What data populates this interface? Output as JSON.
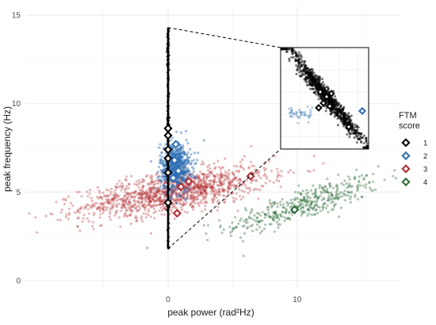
{
  "chart_data": {
    "type": "scatter",
    "title": "",
    "xlabel": "peak power (rad²Hz)",
    "ylabel": "peak frequency (Hz)",
    "xlim": [
      -11,
      18
    ],
    "ylim": [
      -0.5,
      15.5
    ],
    "x_ticks": [
      0,
      10
    ],
    "x_tick_labels": [
      "0",
      "10"
    ],
    "y_ticks": [
      0,
      5,
      10,
      15
    ],
    "y_tick_labels": [
      "0",
      "5",
      "10",
      "15"
    ],
    "grid": true,
    "legend": {
      "title": "FTM\nscore",
      "position": "right",
      "entries": [
        "1",
        "2",
        "3",
        "4"
      ]
    },
    "colors": {
      "1": "#000000",
      "2": "#2f6fb3",
      "3": "#b2272d",
      "4": "#2e6b36"
    },
    "clusters": [
      {
        "name": "1",
        "shape": "vertical band at x=0",
        "x_center": 0,
        "x_spread": 0.05,
        "y_min": 1.8,
        "y_max": 14.3
      },
      {
        "name": "2",
        "x_center": 0.6,
        "x_spread": 0.6,
        "y_center": 6.4,
        "y_spread": 0.7
      },
      {
        "name": "3",
        "x_center": 0.5,
        "x_spread": 3.6,
        "y_center": 5.0,
        "y_spread": 0.55,
        "slope": 0.12
      },
      {
        "name": "4",
        "x_center": 10.5,
        "x_spread": 3.0,
        "y_center": 4.3,
        "y_spread": 0.45,
        "slope": 0.22
      }
    ],
    "highlight_points": [
      {
        "series": "1",
        "x": 0,
        "y": 8.6
      },
      {
        "series": "1",
        "x": 0,
        "y": 8.2
      },
      {
        "series": "1",
        "x": 0,
        "y": 7.4
      },
      {
        "series": "1",
        "x": 0,
        "y": 6.9
      },
      {
        "series": "1",
        "x": 0,
        "y": 6.1
      },
      {
        "series": "1",
        "x": 0,
        "y": 4.4
      },
      {
        "series": "2",
        "x": 0.6,
        "y": 7.7
      },
      {
        "series": "2",
        "x": 0.5,
        "y": 6.8
      },
      {
        "series": "2",
        "x": 0.4,
        "y": 5.8
      },
      {
        "series": "2",
        "x": 0.8,
        "y": 6.2
      },
      {
        "series": "3",
        "x": 1.6,
        "y": 5.6
      },
      {
        "series": "3",
        "x": 1.0,
        "y": 5.3
      },
      {
        "series": "3",
        "x": 6.4,
        "y": 5.9
      },
      {
        "series": "3",
        "x": 0.7,
        "y": 3.8
      },
      {
        "series": "4",
        "x": 9.8,
        "y": 4.0
      }
    ],
    "inset": {
      "description": "zoom of FTM score 1 points",
      "connector_source": {
        "x": 0,
        "y_min": 1.8,
        "y_max": 14.3
      }
    }
  }
}
